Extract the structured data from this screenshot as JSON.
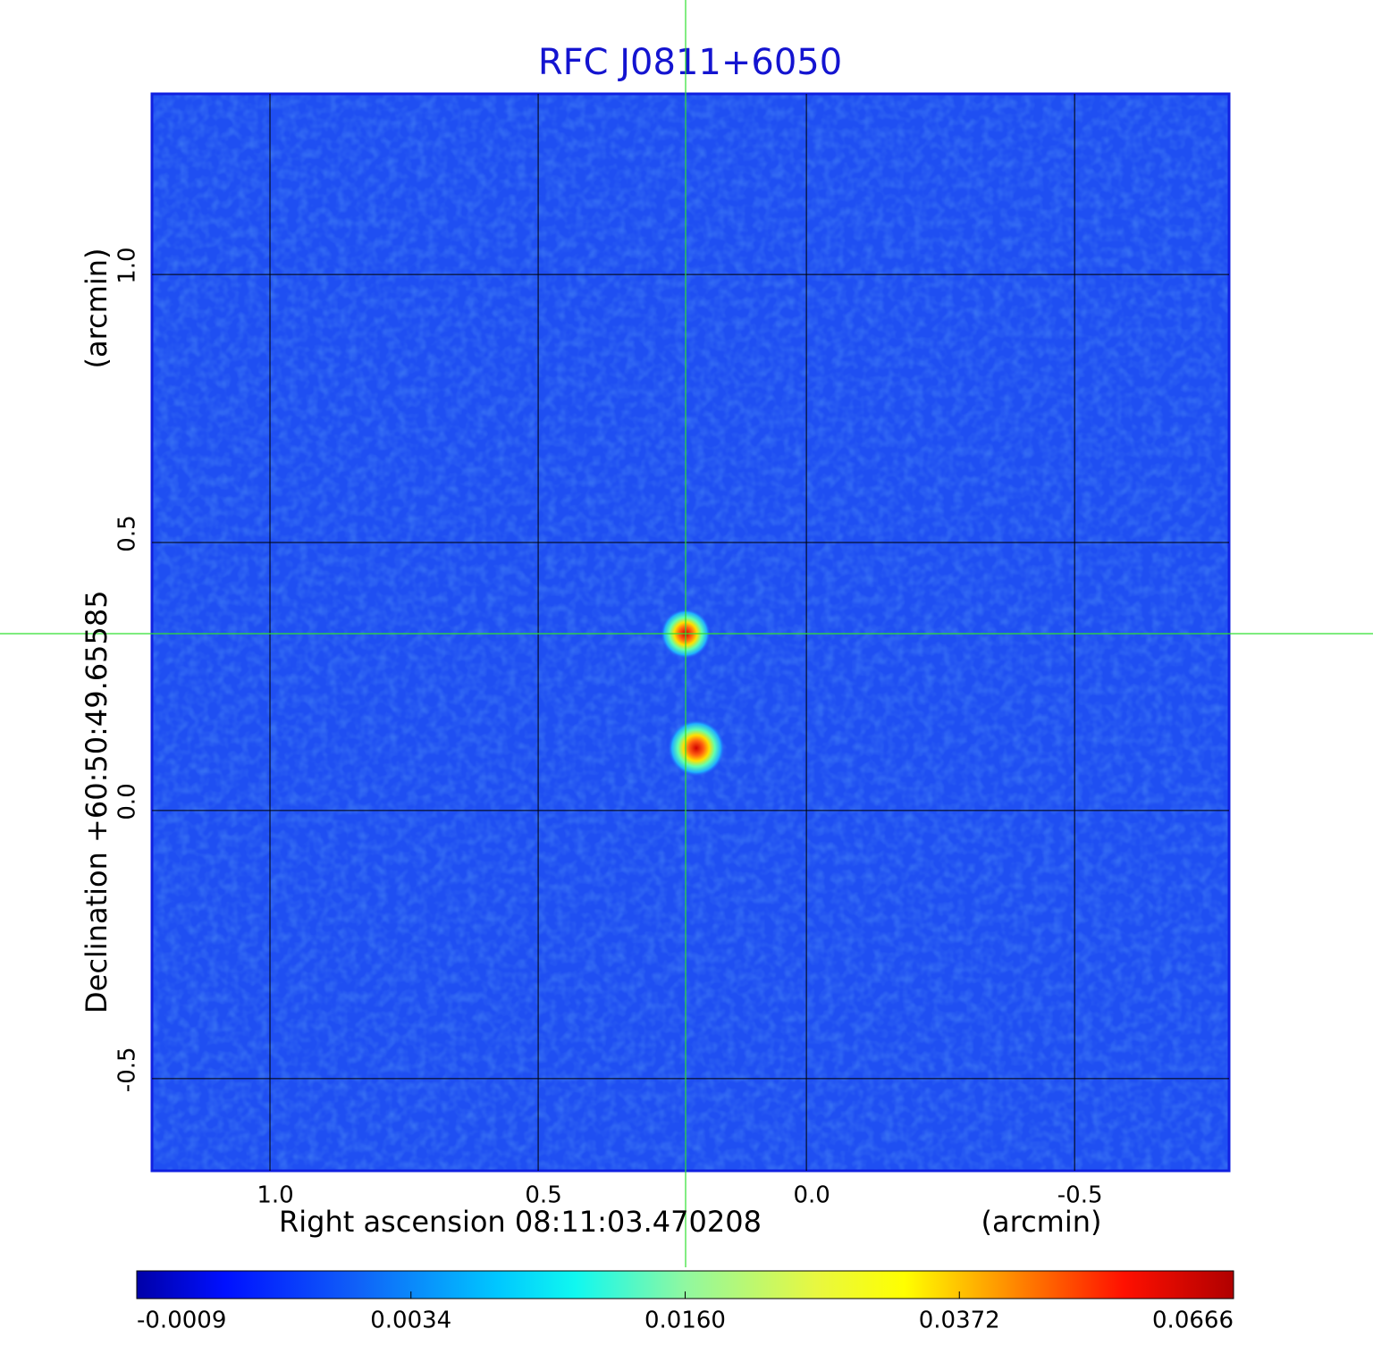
{
  "chart_data": {
    "type": "image",
    "title": "RFC J0811+6050",
    "xlabel": "Right ascension  08:11:03.470208",
    "xunit": "(arcmin)",
    "ylabel": "Declination  +60:50:49.65585",
    "yunit": "(arcmin)",
    "xlim": [
      1.22,
      -0.788
    ],
    "ylim": [
      -0.672,
      1.337
    ],
    "xticks": [
      {
        "value": 1,
        "label": "1.0"
      },
      0.5,
      {
        "value": 0,
        "label": "0.0"
      },
      -0.5
    ],
    "yticks": [
      -0.5,
      {
        "value": 0,
        "label": "0.0"
      },
      0.5,
      {
        "value": 1,
        "label": "1.0"
      }
    ],
    "grid": true,
    "colorbar_ticks": [
      -0.0009,
      0.0034,
      {
        "value": 0.016,
        "label": "0.0160"
      },
      0.0372,
      0.0666
    ]
  }
}
